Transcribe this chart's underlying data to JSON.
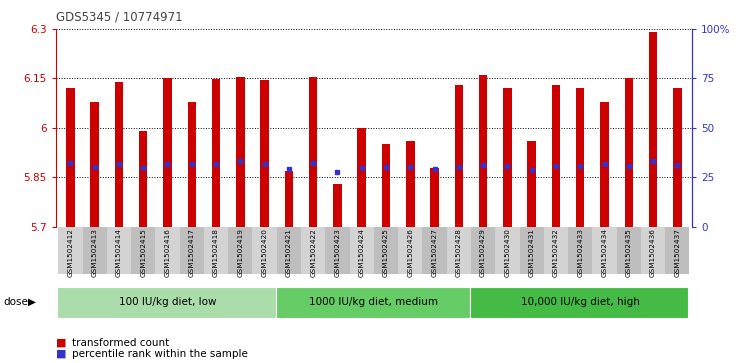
{
  "title": "GDS5345 / 10774971",
  "samples": [
    "GSM1502412",
    "GSM1502413",
    "GSM1502414",
    "GSM1502415",
    "GSM1502416",
    "GSM1502417",
    "GSM1502418",
    "GSM1502419",
    "GSM1502420",
    "GSM1502421",
    "GSM1502422",
    "GSM1502423",
    "GSM1502424",
    "GSM1502425",
    "GSM1502426",
    "GSM1502427",
    "GSM1502428",
    "GSM1502429",
    "GSM1502430",
    "GSM1502431",
    "GSM1502432",
    "GSM1502433",
    "GSM1502434",
    "GSM1502435",
    "GSM1502436",
    "GSM1502437"
  ],
  "bar_values": [
    6.12,
    6.08,
    6.14,
    5.99,
    6.15,
    6.08,
    6.148,
    6.155,
    6.145,
    5.87,
    6.155,
    5.83,
    6.0,
    5.95,
    5.96,
    5.88,
    6.13,
    6.162,
    6.12,
    5.96,
    6.13,
    6.12,
    6.08,
    6.15,
    6.29,
    6.12
  ],
  "blue_dot_values": [
    5.893,
    5.882,
    5.89,
    5.88,
    5.89,
    5.89,
    5.89,
    5.9,
    5.89,
    5.875,
    5.895,
    5.865,
    5.878,
    5.882,
    5.882,
    5.876,
    5.882,
    5.888,
    5.884,
    5.874,
    5.884,
    5.884,
    5.89,
    5.884,
    5.9,
    5.888
  ],
  "ylim": [
    5.7,
    6.3
  ],
  "yticks": [
    5.7,
    5.85,
    6.0,
    6.15,
    6.3
  ],
  "ytick_labels": [
    "5.7",
    "5.85",
    "6",
    "6.15",
    "6.3"
  ],
  "right_yticks_pct": [
    0,
    25,
    50,
    75,
    100
  ],
  "right_ytick_labels": [
    "0",
    "25",
    "50",
    "75",
    "100%"
  ],
  "bar_color": "#cc0000",
  "dot_color": "#3333cc",
  "groups": [
    {
      "label": "100 IU/kg diet, low",
      "start": 0,
      "end": 9,
      "color": "#aaddaa"
    },
    {
      "label": "1000 IU/kg diet, medium",
      "start": 9,
      "end": 17,
      "color": "#66cc66"
    },
    {
      "label": "10,000 IU/kg diet, high",
      "start": 17,
      "end": 26,
      "color": "#44bb44"
    }
  ],
  "dose_label": "dose",
  "legend_items": [
    {
      "label": "transformed count",
      "color": "#cc0000"
    },
    {
      "label": "percentile rank within the sample",
      "color": "#3333cc"
    }
  ],
  "background_color": "#ffffff",
  "plot_bg_color": "#ffffff",
  "tick_bg_even": "#d3d3d3",
  "tick_bg_odd": "#bebebe",
  "left_axis_color": "#cc0000",
  "right_axis_color": "#3333cc",
  "bar_width": 0.35
}
